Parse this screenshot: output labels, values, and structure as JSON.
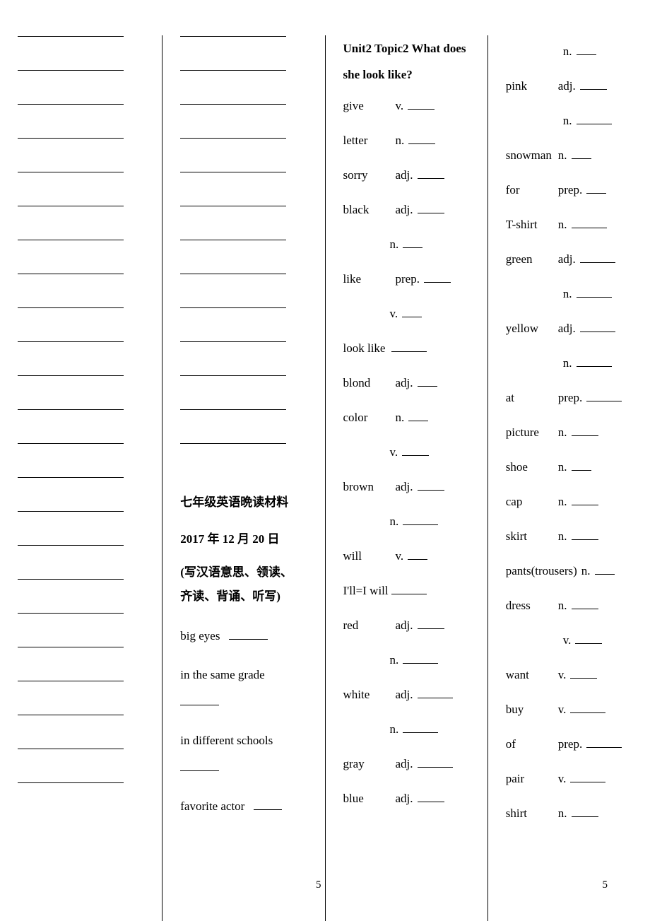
{
  "col2": {
    "title": "七年级英语晩读材料",
    "date": "2017 年 12 月 20 日",
    "note_open": "(",
    "note_l1": "写汉语意思、领读、",
    "note_l2": "齐读、背诵、听写)",
    "phrases": {
      "p1": "big eyes",
      "p2": "in  the  same  grade",
      "p3": "in  different  schools",
      "p4": "favorite actor"
    }
  },
  "col3": {
    "unit": "Unit2   Topic2   What does she look like?",
    "rows": [
      {
        "word": "give",
        "pos": "v.",
        "blankClass": "blank"
      },
      {
        "word": "letter",
        "pos": "n.",
        "blankClass": "blank"
      },
      {
        "word": "sorry",
        "pos": "adj.",
        "blankClass": "blank"
      },
      {
        "word": "black",
        "pos": "adj.",
        "blankClass": "blank"
      },
      {
        "word": "",
        "pos": "n.",
        "blankClass": "blank short",
        "indent": true
      },
      {
        "word": "like",
        "pos": "prep.",
        "blankClass": "blank"
      },
      {
        "word": "",
        "pos": "v.",
        "blankClass": "blank short",
        "indent": true
      },
      {
        "word": "look like",
        "pos": "",
        "blankClass": "blank med"
      },
      {
        "word": "blond",
        "pos": "adj.",
        "blankClass": "blank short"
      },
      {
        "word": "color",
        "pos": "n.",
        "blankClass": "blank short"
      },
      {
        "word": "",
        "pos": "v.",
        "blankClass": "blank",
        "indent": true
      },
      {
        "word": "brown",
        "pos": "adj.",
        "blankClass": "blank"
      },
      {
        "word": "",
        "pos": "n.",
        "blankClass": "blank med",
        "indent": true
      },
      {
        "word": "will",
        "pos": "v.",
        "blankClass": "blank short"
      },
      {
        "word": "I'll=I will",
        "pos": "",
        "blankClass": "blank med"
      },
      {
        "word": "red",
        "pos": "adj.",
        "blankClass": "blank"
      },
      {
        "word": "",
        "pos": "n.",
        "blankClass": "blank med",
        "indent": true
      },
      {
        "word": "white",
        "pos": "adj.",
        "blankClass": "blank med"
      },
      {
        "word": "",
        "pos": "n.",
        "blankClass": "blank med",
        "indent": true
      },
      {
        "word": "gray",
        "pos": "adj.",
        "blankClass": "blank med"
      },
      {
        "word": "blue",
        "pos": "adj.",
        "blankClass": "blank"
      }
    ]
  },
  "col4": {
    "rows": [
      {
        "word": "",
        "pos": "n.",
        "blankClass": "blank short",
        "indent2": true
      },
      {
        "word": "pink",
        "pos": "adj.",
        "blankClass": "blank"
      },
      {
        "word": "",
        "pos": "n.",
        "blankClass": "blank med",
        "indent2": true
      },
      {
        "word": "snowman",
        "pos": "n.",
        "blankClass": "blank short"
      },
      {
        "word": "for",
        "pos": "prep.",
        "blankClass": "blank short"
      },
      {
        "word": "T-shirt",
        "pos": "n.",
        "blankClass": "blank med"
      },
      {
        "word": "green",
        "pos": "adj.",
        "blankClass": "blank med"
      },
      {
        "word": "",
        "pos": "n.",
        "blankClass": "blank med",
        "indent2": true
      },
      {
        "word": "yellow",
        "pos": "adj.",
        "blankClass": "blank med"
      },
      {
        "word": "",
        "pos": "n.",
        "blankClass": "blank med",
        "indent2": true
      },
      {
        "word": "at",
        "pos": "prep.",
        "blankClass": "blank med"
      },
      {
        "word": "picture",
        "pos": "n.",
        "blankClass": "blank"
      },
      {
        "word": "shoe",
        "pos": "n.",
        "blankClass": "blank short"
      },
      {
        "word": "cap",
        "pos": "n.",
        "blankClass": "blank"
      },
      {
        "word": "skirt",
        "pos": "n.",
        "blankClass": "blank"
      },
      {
        "word": "pants(trousers)",
        "pos": "n.",
        "blankClass": "blank short",
        "tight": true
      },
      {
        "word": "dress",
        "pos": "n.",
        "blankClass": "blank"
      },
      {
        "word": "",
        "pos": "v.",
        "blankClass": "blank",
        "indent2": true
      },
      {
        "word": "want",
        "pos": "v.",
        "blankClass": "blank"
      },
      {
        "word": "buy",
        "pos": "v.",
        "blankClass": "blank med",
        "tight": true
      },
      {
        "word": "of",
        "pos": "prep.",
        "blankClass": "blank med"
      },
      {
        "word": "pair",
        "pos": "v.",
        "blankClass": "blank med"
      },
      {
        "word": "shirt",
        "pos": "n.",
        "blankClass": "blank"
      }
    ]
  },
  "pageNum": "5",
  "counts": {
    "col1Blanks": 23,
    "col2Blanks": 13
  }
}
